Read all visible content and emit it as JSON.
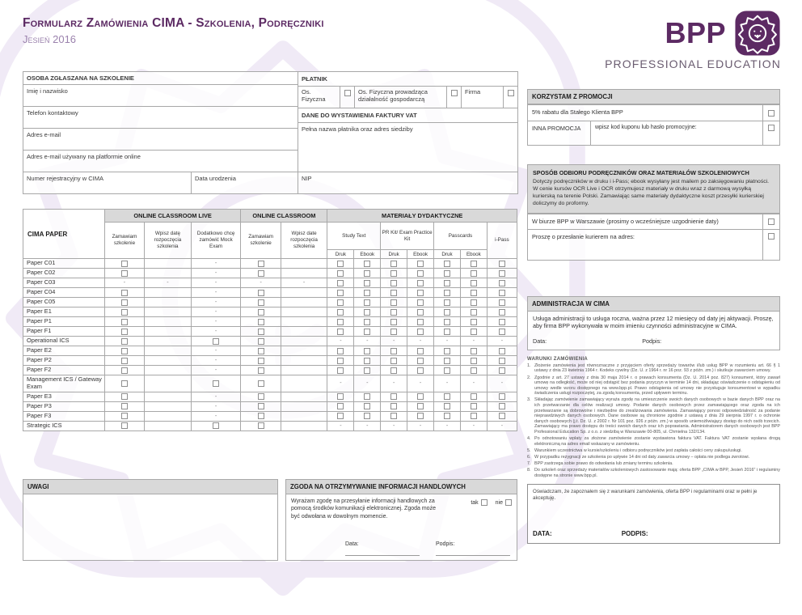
{
  "header": {
    "title": "Formularz Zamówienia CIMA - Szkolenia, Podręczniki",
    "season": "Jesień 2016",
    "brand": "BPP",
    "brand_sub": "PROFESSIONAL EDUCATION"
  },
  "colors": {
    "brand_purple": "#5c2a63",
    "bar_gray": "#d9d9d9"
  },
  "person": {
    "title": "OSOBA ZGŁASZANA NA SZKOLENIE",
    "name": "Imię i nazwisko",
    "phone": "Telefon kontaktowy",
    "email": "Adres e-mail",
    "email_online": "Adres e-mail używany na platformie online",
    "cima_number": "Numer rejestracyjny w CIMA",
    "birth_date": "Data urodzenia"
  },
  "payer": {
    "title": "PŁATNIK",
    "opt_individual": "Os. Fizyczna",
    "opt_sole_trader": "Os. Fizyczna prowadząca działalność gospodarczą",
    "opt_company": "Firma",
    "invoice_title": "DANE DO WYSTAWIENIA FAKTURY VAT",
    "invoice_field": "Pełna nazwa płatnika oraz adres siedziby",
    "nip": "NIP"
  },
  "order_table": {
    "paper_header": "CIMA PAPER",
    "group_ocl": "ONLINE CLASSROOM LIVE",
    "group_oc": "ONLINE CLASSROOM",
    "group_materials": "MATERIAŁY DYDAKTYCZNE",
    "sub_order1": "Zamawiam szkolenie",
    "sub_date1": "Wpisz datę rozpoczęcia szkolenia",
    "sub_mock": "Dodatkowo chcę zamówić Mock Exam",
    "sub_order2": "Zamawiam szkolenie",
    "sub_date2": "Wpisz date rozpoczęcia szkolenia",
    "sub_study": "Study Text",
    "sub_prkit": "PR Kit/ Exam Practice Kit",
    "sub_passcards": "Passcards",
    "sub_ipass": "i-Pass",
    "col_print": "Druk",
    "col_ebook": "Ebook",
    "na_symbol": "-",
    "rows": [
      {
        "name": "Paper C01",
        "cells": [
          "c",
          "i",
          "d",
          "c",
          "i",
          "c",
          "c",
          "c",
          "c",
          "c",
          "c",
          "c"
        ]
      },
      {
        "name": "Paper C02",
        "cells": [
          "c",
          "i",
          "d",
          "c",
          "i",
          "c",
          "c",
          "c",
          "c",
          "c",
          "c",
          "c"
        ]
      },
      {
        "name": "Paper C03",
        "cells": [
          "d",
          "d",
          "d",
          "d",
          "d",
          "c",
          "c",
          "c",
          "c",
          "c",
          "c",
          "c"
        ]
      },
      {
        "name": "Paper C04",
        "cells": [
          "c",
          "i",
          "d",
          "c",
          "i",
          "c",
          "c",
          "c",
          "c",
          "c",
          "c",
          "c"
        ]
      },
      {
        "name": "Paper C05",
        "cells": [
          "c",
          "i",
          "d",
          "c",
          "i",
          "c",
          "c",
          "c",
          "c",
          "c",
          "c",
          "c"
        ]
      },
      {
        "name": "Paper E1",
        "cells": [
          "c",
          "i",
          "d",
          "c",
          "i",
          "c",
          "c",
          "c",
          "c",
          "c",
          "c",
          "c"
        ]
      },
      {
        "name": "Paper P1",
        "cells": [
          "c",
          "i",
          "d",
          "c",
          "i",
          "c",
          "c",
          "c",
          "c",
          "c",
          "c",
          "c"
        ]
      },
      {
        "name": "Paper F1",
        "cells": [
          "c",
          "i",
          "d",
          "c",
          "i",
          "c",
          "c",
          "c",
          "c",
          "c",
          "c",
          "c"
        ]
      },
      {
        "name": "Operational ICS",
        "cells": [
          "c",
          "i",
          "c",
          "c",
          "i",
          "d",
          "d",
          "d",
          "d",
          "d",
          "d",
          "d"
        ]
      },
      {
        "name": "Paper E2",
        "cells": [
          "c",
          "i",
          "d",
          "c",
          "i",
          "c",
          "c",
          "c",
          "c",
          "c",
          "c",
          "c"
        ]
      },
      {
        "name": "Paper P2",
        "cells": [
          "c",
          "i",
          "d",
          "c",
          "i",
          "c",
          "c",
          "c",
          "c",
          "c",
          "c",
          "c"
        ]
      },
      {
        "name": "Paper F2",
        "cells": [
          "c",
          "i",
          "d",
          "c",
          "i",
          "c",
          "c",
          "c",
          "c",
          "c",
          "c",
          "c"
        ]
      },
      {
        "name": "Management ICS / Gateway Exam",
        "cells": [
          "c",
          "i",
          "c",
          "c",
          "i",
          "d",
          "d",
          "d",
          "d",
          "d",
          "d",
          "d"
        ]
      },
      {
        "name": "Paper E3",
        "cells": [
          "c",
          "i",
          "d",
          "c",
          "i",
          "c",
          "c",
          "c",
          "c",
          "c",
          "c",
          "c"
        ]
      },
      {
        "name": "Paper P3",
        "cells": [
          "c",
          "i",
          "d",
          "c",
          "i",
          "c",
          "c",
          "c",
          "c",
          "c",
          "c",
          "c"
        ]
      },
      {
        "name": "Paper F3",
        "cells": [
          "c",
          "i",
          "d",
          "c",
          "i",
          "c",
          "c",
          "c",
          "c",
          "c",
          "c",
          "c"
        ]
      },
      {
        "name": "Strategic ICS",
        "cells": [
          "c",
          "i",
          "c",
          "c",
          "i",
          "d",
          "d",
          "d",
          "d",
          "d",
          "d",
          "d"
        ]
      }
    ]
  },
  "uwagi": {
    "title": "UWAGI"
  },
  "consent": {
    "title": "ZGODA NA OTRZYMYWANIE INFORMACJI HANDLOWYCH",
    "body": "Wyrażam zgodę na przesyłanie informacji handlowych za pomocą środków komunikacji elektronicznej. Zgoda może być odwołana w dowolnym momencie.",
    "yes": "tak",
    "no": "nie",
    "date_label": "Data:",
    "sign_label": "Podpis:"
  },
  "promo": {
    "title": "KORZYSTAM Z PROMOCJI",
    "loyal": "5% rabatu dla Stałego Klienta BPP",
    "other": "INNA PROMOCJA",
    "other_hint": "wpisz kod kuponu lub hasło promocyjne:"
  },
  "delivery": {
    "title": "SPOSÓB ODBIORU PODRĘCZNIKÓW ORAZ MATERIAŁÓW SZKOLENIOWYCH",
    "intro": "Dotyczy podręczników w druku i i-Pass; ebook wysyłany jest mailem po zaksięgowaniu płatności. W cenie kursów OCR Live i OCR otrzymujesz materiały w druku wraz z darmową wysyłką kurierską na terenie Polski. Zamawiając same materiały dydaktyczne koszt przesyłki kurierskiej doliczymy do proformy.",
    "office": "W biurze BPP w Warszawie (prosimy o wcześniejsze uzgodnienie daty)",
    "courier": "Proszę o przesłanie kurierem na adres:"
  },
  "admin": {
    "title": "ADMINISTRACJA W CIMA",
    "body": "Usługa administracji to usługa roczna, ważna przez 12 miesięcy od daty jej aktywacji. Proszę, aby firma BPP wykonywała w moim imieniu czynności administracyjne w CIMA.",
    "date_label": "Data:",
    "sign_label": "Podpis:"
  },
  "terms": {
    "title": "WARUNKI ZAMÓWIENIA",
    "items": [
      "Złożenie zamówienia jest równoznaczne z przyjęciem oferty sprzedaży towarów i/lub usług BPP w rozumieniu art. 66 § 1 ustawy z dnia 23 kwietnia 1964 r. Kodeks cywilny (Dz. U. z 1964 r. nr 16 poz. 93 z późn. zm.) i skutkuje zawarciem umowy.",
      "Zgodnie z art. 27 ustawy z dnia 30 maja 2014 r. o prawach konsumenta (Dz. U. 2014 poz. 827) konsument, który zawarł umowę na odległość, może od niej odstąpić bez podania przyczyn w terminie 14 dni, składając oświadczenie o odstąpieniu od umowy wedle wzoru dostępnego na www.bpp.pl. Prawo odstąpienia od umowy nie przysługuje konsumentowi w wypadku świadczenia usługi rozpoczętej, za zgodą konsumenta, przed upływem terminu.",
      "Składając zamówienie zamawiający wyraża zgodę na umieszczenie swoich danych osobowych w bazie danych BPP oraz na ich przetwarzanie dla celów realizacji umowy. Podanie danych osobowych przez zamawiającego oraz zgoda na ich przetwarzanie są dobrowolne i niezbędne do zrealizowania zamówienia. Zamawiający ponosi odpowiedzialność za podanie nieprawdziwych danych osobowych. Dane osobowe są chronione zgodnie z ustawą z dnia 29 sierpnia 1997 r. o ochronie danych osobowych (j.t. Dz. U. z 2002 r. Nr 101 poz. 926 z późn. zm.) w sposób uniemożliwiający dostęp do nich osób trzecich. Zamawiający ma prawo dostępu do treści swoich danych oraz ich poprawiania. Administratorem danych osobowych jest BPP Professional Education Sp. z o.o. z siedzibą w Warszawie 00-805, ul. Chmielna 132/134.",
      "Po odnotowaniu wpłaty za złożone zamówienie zostanie wystawiona faktura VAT. Faktura VAT zostanie wysłana drogą elektroniczną na adres email wskazany w zamówieniu.",
      "Warunkiem uczestnictwa w kursie/szkoleniu i odbioru podręczników jest zapłata całości ceny zakupu/usługi.",
      "W przypadku rezygnacji ze szkolenia po upływie 14 dni od daty zawarcia umowy – opłata nie podlega zwrotowi.",
      "BPP zastrzega sobie prawo do odwołania lub zmiany terminu szkolenia.",
      "Do szkoleń oraz sprzedaży materiałów szkoleniowych zastosowanie mają: oferta BPP „CIMA w BPP, Jesień 2016” i regulaminy dostępne na stronie www.bpp.pl."
    ]
  },
  "declaration": {
    "body": "Oświadczam, że zapoznałem się z warunkami zamówienia, oferta BPP i regulaminami oraz w pełni je akceptuję.",
    "date_label": "DATA:",
    "sign_label": "PODPIS:"
  }
}
